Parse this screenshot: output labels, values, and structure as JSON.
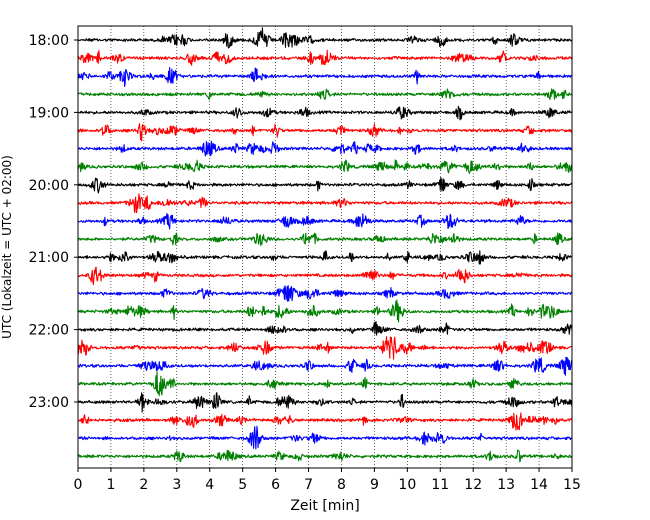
{
  "chart_data": {
    "type": "line",
    "title": "",
    "xlabel": "Zeit  [min]",
    "ylabel": "UTC (Lokalzeit = UTC + 02:00)",
    "xlim": [
      0,
      15
    ],
    "x_ticks": [
      "0",
      "1",
      "2",
      "3",
      "4",
      "5",
      "6",
      "7",
      "8",
      "9",
      "10",
      "11",
      "12",
      "13",
      "14",
      "15"
    ],
    "y_ticks": [
      "18:00",
      "19:00",
      "20:00",
      "21:00",
      "22:00",
      "23:00"
    ],
    "grid": "vertical dotted",
    "legend": "none",
    "trace_interval_min": 15,
    "series": [
      {
        "row": "18:00",
        "color": "#000000"
      },
      {
        "row": "18:15",
        "color": "#ff0000"
      },
      {
        "row": "18:30",
        "color": "#0000ff"
      },
      {
        "row": "18:45",
        "color": "#008000"
      },
      {
        "row": "19:00",
        "color": "#000000"
      },
      {
        "row": "19:15",
        "color": "#ff0000"
      },
      {
        "row": "19:30",
        "color": "#0000ff"
      },
      {
        "row": "19:45",
        "color": "#008000"
      },
      {
        "row": "20:00",
        "color": "#000000"
      },
      {
        "row": "20:15",
        "color": "#ff0000"
      },
      {
        "row": "20:30",
        "color": "#0000ff"
      },
      {
        "row": "20:45",
        "color": "#008000"
      },
      {
        "row": "21:00",
        "color": "#000000"
      },
      {
        "row": "21:15",
        "color": "#ff0000"
      },
      {
        "row": "21:30",
        "color": "#0000ff"
      },
      {
        "row": "21:45",
        "color": "#008000"
      },
      {
        "row": "22:00",
        "color": "#000000"
      },
      {
        "row": "22:15",
        "color": "#ff0000"
      },
      {
        "row": "22:30",
        "color": "#0000ff"
      },
      {
        "row": "22:45",
        "color": "#008000"
      },
      {
        "row": "23:00",
        "color": "#000000"
      },
      {
        "row": "23:15",
        "color": "#ff0000"
      },
      {
        "row": "23:30",
        "color": "#0000ff"
      },
      {
        "row": "23:45",
        "color": "#008000"
      }
    ]
  }
}
